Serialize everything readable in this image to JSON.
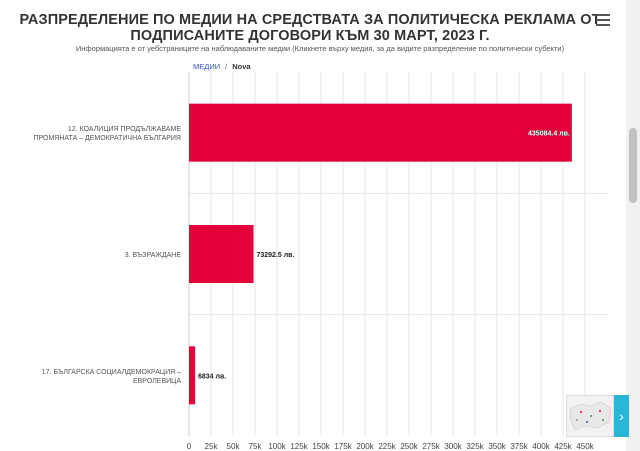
{
  "title": "РАЗПРЕДЕЛЕНИЕ ПО МЕДИИ НА СРЕДСТВАТА ЗА ПОЛИТИЧЕСКА РЕКЛАМА ОТ ПОДПИСАНИТЕ ДОГОВОРИ КЪМ 30 МАРТ, 2023 Г.",
  "subtitle": "Информацията е от уебстраниците на наблюдаваните медии (Кликнете върху медия, за да видите разпределение по политически субекти)",
  "breadcrumb": {
    "root": "МЕДИИ",
    "separator": "/",
    "current": "Nova"
  },
  "icons": {
    "menu": "hamburger-menu-icon",
    "next": "chevron-right-icon"
  },
  "nav_next_glyph": "›",
  "colors": {
    "bar": "#e4003b",
    "grid": "#e6e6e6",
    "accent": "#29b6d8"
  },
  "chart_data": {
    "type": "bar",
    "orientation": "horizontal",
    "categories": [
      "12. КОАЛИЦИЯ ПРОДЪЛЖАВАМЕ ПРОМЯНАТА – ДЕМОКРАТИЧНА БЪЛГАРИЯ",
      "3. ВЪЗРАЖДАНЕ",
      "17. БЪЛГАРСКА СОЦИАЛДЕМОКРАЦИЯ – ЕВРОЛЕВИЦА"
    ],
    "values": [
      435084.4,
      73292.5,
      6834
    ],
    "data_labels": [
      "435084.4 лв.",
      "73292.5 лв.",
      "6834 лв."
    ],
    "xlim": [
      0,
      450000
    ],
    "xticks": [
      0,
      25000,
      50000,
      75000,
      100000,
      125000,
      150000,
      175000,
      200000,
      225000,
      250000,
      275000,
      300000,
      325000,
      350000,
      375000,
      400000,
      425000,
      450000
    ],
    "xtick_labels": [
      "0",
      "25k",
      "50k",
      "75k",
      "100k",
      "125k",
      "150k",
      "175k",
      "200k",
      "225k",
      "250k",
      "275k",
      "300k",
      "325k",
      "350k",
      "375k",
      "400k",
      "425k",
      "450k"
    ],
    "grid": true
  }
}
